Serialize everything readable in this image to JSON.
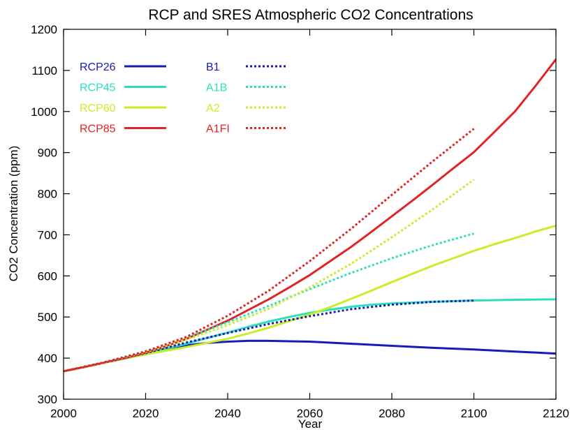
{
  "chart_data": {
    "type": "line",
    "title": "RCP and SRES Atmospheric CO2 Concentrations",
    "xlabel": "Year",
    "ylabel": "CO2 Concentration (ppm)",
    "xlim": [
      2000,
      2120
    ],
    "ylim": [
      300,
      1200
    ],
    "xticks": [
      2000,
      2020,
      2040,
      2060,
      2080,
      2100,
      2120
    ],
    "yticks": [
      300,
      400,
      500,
      600,
      700,
      800,
      900,
      1000,
      1100,
      1200
    ],
    "grid": false,
    "legend": "top-left",
    "series": [
      {
        "name": "RCP26",
        "color": "#1a1ab8",
        "style": "solid",
        "x": [
          2000,
          2005,
          2010,
          2015,
          2020,
          2025,
          2030,
          2035,
          2040,
          2045,
          2050,
          2055,
          2060,
          2070,
          2080,
          2090,
          2100,
          2110,
          2120
        ],
        "y": [
          368,
          378,
          389,
          400,
          411,
          422,
          431,
          437,
          440,
          442,
          442,
          441,
          440,
          435,
          430,
          425,
          421,
          416,
          411
        ]
      },
      {
        "name": "RCP45",
        "color": "#2ee0b8",
        "style": "solid",
        "x": [
          2000,
          2005,
          2010,
          2015,
          2020,
          2025,
          2030,
          2035,
          2040,
          2045,
          2050,
          2055,
          2060,
          2065,
          2070,
          2075,
          2080,
          2090,
          2100,
          2110,
          2120
        ],
        "y": [
          368,
          378,
          389,
          400,
          411,
          423,
          435,
          449,
          462,
          476,
          489,
          500,
          510,
          518,
          525,
          530,
          533,
          537,
          540,
          542,
          543
        ]
      },
      {
        "name": "RCP60",
        "color": "#c8ee28",
        "style": "solid",
        "x": [
          2000,
          2005,
          2010,
          2015,
          2020,
          2025,
          2030,
          2035,
          2040,
          2045,
          2050,
          2055,
          2060,
          2065,
          2070,
          2075,
          2080,
          2085,
          2090,
          2095,
          2100,
          2105,
          2110,
          2115,
          2120
        ],
        "y": [
          368,
          378,
          389,
          399,
          409,
          418,
          427,
          437,
          447,
          460,
          474,
          490,
          506,
          524,
          544,
          564,
          585,
          605,
          625,
          643,
          661,
          677,
          692,
          708,
          722
        ]
      },
      {
        "name": "RCP85",
        "color": "#e02424",
        "style": "solid",
        "x": [
          2000,
          2005,
          2010,
          2015,
          2020,
          2025,
          2030,
          2035,
          2040,
          2045,
          2050,
          2055,
          2060,
          2065,
          2070,
          2075,
          2080,
          2085,
          2090,
          2095,
          2100,
          2105,
          2110,
          2115,
          2120
        ],
        "y": [
          368,
          378,
          389,
          400,
          413,
          429,
          447,
          469,
          491,
          517,
          543,
          572,
          602,
          636,
          670,
          707,
          745,
          783,
          822,
          862,
          901,
          950,
          1000,
          1062,
          1127
        ]
      },
      {
        "name": "B1",
        "color": "#1a1ab8",
        "style": "dotted",
        "x": [
          2000,
          2010,
          2020,
          2030,
          2040,
          2050,
          2060,
          2070,
          2080,
          2090,
          2100
        ],
        "y": [
          368,
          389,
          412,
          438,
          461,
          483,
          502,
          519,
          530,
          537,
          540
        ]
      },
      {
        "name": "A1B",
        "color": "#2ee0b8",
        "style": "dotted",
        "x": [
          2000,
          2010,
          2020,
          2030,
          2040,
          2050,
          2060,
          2070,
          2080,
          2090,
          2100
        ],
        "y": [
          368,
          390,
          417,
          450,
          487,
          527,
          568,
          607,
          643,
          675,
          703
        ]
      },
      {
        "name": "A2",
        "color": "#c8ee28",
        "style": "dotted",
        "x": [
          2000,
          2010,
          2020,
          2030,
          2040,
          2050,
          2060,
          2070,
          2080,
          2090,
          2100
        ],
        "y": [
          368,
          389,
          414,
          445,
          480,
          520,
          572,
          629,
          694,
          762,
          834
        ]
      },
      {
        "name": "A1FI",
        "color": "#e02424",
        "style": "dotted",
        "x": [
          2000,
          2010,
          2020,
          2030,
          2040,
          2050,
          2060,
          2070,
          2080,
          2090,
          2100
        ],
        "y": [
          368,
          390,
          416,
          452,
          503,
          564,
          636,
          714,
          797,
          879,
          958
        ]
      }
    ]
  }
}
